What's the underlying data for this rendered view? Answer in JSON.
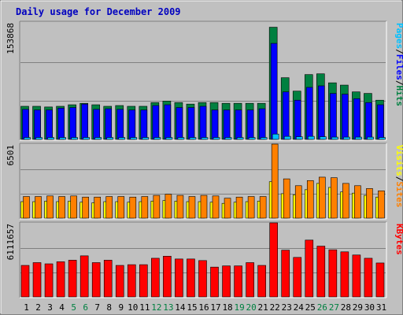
{
  "title": "Daily usage for December 2009",
  "colors": {
    "hits": "#008040",
    "files": "#0000ff",
    "pages": "#00c0ff",
    "visits": "#ffff00",
    "sites": "#ff8000",
    "kbytes": "#ff0000",
    "weekend_label": "#008040",
    "weekday_label": "#000000",
    "panel_bg": "#c0c0c0"
  },
  "chart_data": [
    {
      "type": "bar",
      "panel": "top",
      "ymax_label": "153868",
      "ylim": [
        0,
        153868
      ],
      "categories": [
        "1",
        "2",
        "3",
        "4",
        "5",
        "6",
        "7",
        "8",
        "9",
        "10",
        "11",
        "12",
        "13",
        "14",
        "15",
        "16",
        "17",
        "18",
        "19",
        "20",
        "21",
        "22",
        "23",
        "24",
        "25",
        "26",
        "27",
        "28",
        "29",
        "30",
        "31"
      ],
      "weekend_days": [
        "5",
        "6",
        "12",
        "13",
        "19",
        "20",
        "26",
        "27"
      ],
      "legend": [
        {
          "text": "Hits",
          "color": "#008040"
        },
        {
          "text": "Files",
          "color": "#0000ff"
        },
        {
          "text": "Pages",
          "color": "#00c0ff"
        }
      ],
      "series": [
        {
          "name": "Hits",
          "values": [
            43400,
            43400,
            42500,
            43400,
            45400,
            47300,
            45400,
            43400,
            44400,
            43400,
            43400,
            48300,
            50300,
            48300,
            46300,
            48300,
            48300,
            47300,
            47300,
            47300,
            47300,
            147100,
            80900,
            63300,
            85000,
            86000,
            74200,
            71200,
            62300,
            60300,
            51400
          ]
        },
        {
          "name": "Files",
          "values": [
            39400,
            38600,
            38600,
            41000,
            41800,
            46300,
            39400,
            40200,
            39400,
            38600,
            38600,
            44400,
            45400,
            41800,
            41800,
            43400,
            38600,
            38600,
            38600,
            38600,
            40200,
            125900,
            62300,
            51400,
            68200,
            70200,
            60300,
            59300,
            53400,
            48300,
            45400
          ]
        },
        {
          "name": "Pages",
          "values": [
            2500,
            2500,
            2500,
            2500,
            2500,
            2500,
            2500,
            2500,
            2500,
            2500,
            2500,
            2500,
            2500,
            2500,
            2500,
            2500,
            2500,
            2500,
            2500,
            2500,
            2500,
            7000,
            4000,
            3500,
            4000,
            3500,
            3000,
            3000,
            3000,
            3000,
            2500
          ]
        }
      ]
    },
    {
      "type": "bar",
      "panel": "middle",
      "ymax_label": "6501",
      "ylim": [
        0,
        6501
      ],
      "legend": [
        {
          "text": "Sites",
          "color": "#ff8000"
        },
        {
          "text": "Visits",
          "color": "#ffff00"
        }
      ],
      "series": [
        {
          "name": "Sites",
          "values": [
            1900,
            1900,
            1950,
            1900,
            1950,
            1850,
            1850,
            1900,
            1900,
            1850,
            1900,
            2000,
            2100,
            2000,
            1900,
            2000,
            1950,
            1750,
            1850,
            1900,
            1900,
            6501,
            3450,
            2850,
            3300,
            3600,
            3550,
            3050,
            2850,
            2600,
            2400
          ]
        },
        {
          "name": "Visits",
          "values": [
            1450,
            1450,
            1500,
            1450,
            1500,
            1400,
            1350,
            1450,
            1450,
            1400,
            1450,
            1500,
            1550,
            1500,
            1450,
            1450,
            1400,
            1300,
            1400,
            1450,
            1500,
            3200,
            2150,
            2050,
            2500,
            3050,
            2700,
            2300,
            2200,
            2000,
            1850
          ]
        }
      ]
    },
    {
      "type": "bar",
      "panel": "bottom",
      "ymax_label": "6111657",
      "ylim": [
        0,
        6111657
      ],
      "legend": [
        {
          "text": "KBytes",
          "color": "#ff0000"
        }
      ],
      "series": [
        {
          "name": "KBytes",
          "values": [
            2600000,
            2830000,
            2730000,
            2900000,
            3030000,
            3390000,
            2830000,
            3030000,
            2600000,
            2660000,
            2660000,
            3190000,
            3360000,
            3130000,
            3130000,
            3000000,
            2460000,
            2560000,
            2560000,
            2830000,
            2600000,
            6111657,
            3860000,
            3260000,
            4690000,
            4190000,
            3890000,
            3720000,
            3460000,
            3190000,
            2800000
          ]
        }
      ]
    }
  ]
}
